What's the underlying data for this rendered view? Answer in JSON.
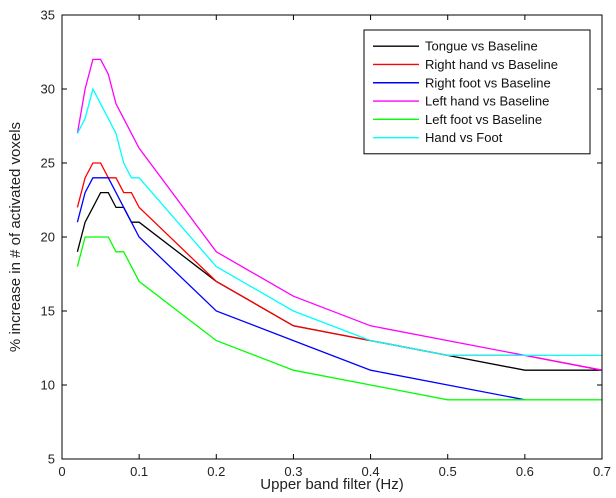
{
  "chart_data": {
    "type": "line",
    "title": "",
    "xlabel": "Upper band filter (Hz)",
    "ylabel": "% increase in # of activated voxels",
    "xlim": [
      0,
      0.7
    ],
    "ylim": [
      5,
      35
    ],
    "xticks": [
      0,
      0.1,
      0.2,
      0.3,
      0.4,
      0.5,
      0.6,
      0.7
    ],
    "xtick_labels": [
      "0",
      "0.1",
      "0.2",
      "0.3",
      "0.4",
      "0.5",
      "0.6",
      "0.7"
    ],
    "yticks": [
      5,
      10,
      15,
      20,
      25,
      30,
      35
    ],
    "ytick_labels": [
      "5",
      "10",
      "15",
      "20",
      "25",
      "30",
      "35"
    ],
    "grid": false,
    "legend_position": "top-right",
    "series": [
      {
        "name": "Tongue vs Baseline",
        "color": "#000000",
        "x": [
          0.02,
          0.03,
          0.04,
          0.05,
          0.06,
          0.07,
          0.08,
          0.09,
          0.1,
          0.2,
          0.3,
          0.4,
          0.5,
          0.6,
          0.7
        ],
        "y": [
          19,
          21,
          22,
          23,
          23,
          22,
          22,
          21,
          21,
          17,
          14,
          13,
          12,
          11,
          11
        ]
      },
      {
        "name": "Right hand vs Baseline",
        "color": "#ff0000",
        "x": [
          0.02,
          0.03,
          0.04,
          0.05,
          0.06,
          0.07,
          0.08,
          0.09,
          0.1,
          0.2,
          0.3,
          0.4,
          0.5,
          0.6,
          0.7
        ],
        "y": [
          22,
          24,
          25,
          25,
          24,
          24,
          23,
          23,
          22,
          17,
          14,
          13,
          12,
          12,
          11
        ]
      },
      {
        "name": "Right foot vs Baseline",
        "color": "#0000ff",
        "x": [
          0.02,
          0.03,
          0.04,
          0.05,
          0.06,
          0.07,
          0.08,
          0.09,
          0.1,
          0.2,
          0.3,
          0.4,
          0.5,
          0.6
        ],
        "y": [
          21,
          23,
          24,
          24,
          24,
          23,
          22,
          21,
          20,
          15,
          13,
          11,
          10,
          9
        ]
      },
      {
        "name": "Left hand vs Baseline",
        "color": "#ff00ff",
        "x": [
          0.02,
          0.03,
          0.04,
          0.05,
          0.06,
          0.07,
          0.08,
          0.09,
          0.1,
          0.2,
          0.3,
          0.4,
          0.5,
          0.6,
          0.7
        ],
        "y": [
          27,
          30,
          32,
          32,
          31,
          29,
          28,
          27,
          26,
          19,
          16,
          14,
          13,
          12,
          11
        ]
      },
      {
        "name": "Left foot vs Baseline",
        "color": "#00ff00",
        "x": [
          0.02,
          0.03,
          0.04,
          0.05,
          0.06,
          0.07,
          0.08,
          0.09,
          0.1,
          0.2,
          0.3,
          0.4,
          0.5,
          0.6,
          0.7
        ],
        "y": [
          18,
          20,
          20,
          20,
          20,
          19,
          19,
          18,
          17,
          13,
          11,
          10,
          9,
          9,
          9
        ]
      },
      {
        "name": "Hand vs Foot",
        "color": "#00ffff",
        "x": [
          0.02,
          0.03,
          0.04,
          0.05,
          0.06,
          0.07,
          0.08,
          0.09,
          0.1,
          0.2,
          0.3,
          0.4,
          0.5,
          0.6,
          0.7
        ],
        "y": [
          27,
          28,
          30,
          29,
          28,
          27,
          25,
          24,
          24,
          18,
          15,
          13,
          12,
          12,
          12
        ]
      }
    ]
  }
}
